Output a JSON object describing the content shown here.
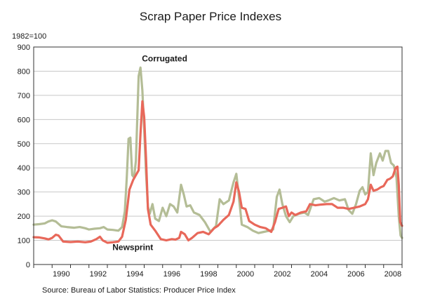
{
  "title": "Scrap Paper Price Indexes",
  "unit_label": "1982=100",
  "source": "Source: Bureau of Labor Statistics: Producer Price Index",
  "colors": {
    "corrugated": "#b4bd96",
    "newsprint": "#e8685a",
    "grid": "#c8c8c8",
    "axis": "#333333"
  },
  "chart_data": {
    "type": "line",
    "title": "Scrap Paper Price Indexes",
    "ylabel": "1982=100",
    "xlabel": "",
    "ylim": [
      0,
      900
    ],
    "xlim": [
      1989.0,
      2009.0
    ],
    "y_ticks": [
      0,
      100,
      200,
      300,
      400,
      500,
      600,
      700,
      800,
      900
    ],
    "x_ticks": [
      1990,
      1992,
      1994,
      1996,
      1998,
      2000,
      2002,
      2004,
      2006,
      2008
    ],
    "x_tick_labels": [
      "1990",
      "1992",
      "1994",
      "1996",
      "1998",
      "2000",
      "2002",
      "2004",
      "2006",
      "2008"
    ],
    "grid": true,
    "series": [
      {
        "name": "Corrugated",
        "color": "#b4bd96",
        "points": [
          [
            1989.0,
            165
          ],
          [
            1989.3,
            167
          ],
          [
            1989.6,
            170
          ],
          [
            1989.8,
            178
          ],
          [
            1990.0,
            183
          ],
          [
            1990.2,
            178
          ],
          [
            1990.5,
            158
          ],
          [
            1990.8,
            155
          ],
          [
            1991.2,
            152
          ],
          [
            1991.5,
            155
          ],
          [
            1991.8,
            150
          ],
          [
            1992.0,
            145
          ],
          [
            1992.3,
            148
          ],
          [
            1992.6,
            150
          ],
          [
            1992.8,
            155
          ],
          [
            1993.0,
            145
          ],
          [
            1993.3,
            143
          ],
          [
            1993.6,
            140
          ],
          [
            1993.8,
            155
          ],
          [
            1993.95,
            220
          ],
          [
            1994.05,
            355
          ],
          [
            1994.15,
            520
          ],
          [
            1994.25,
            525
          ],
          [
            1994.35,
            370
          ],
          [
            1994.45,
            360
          ],
          [
            1994.55,
            430
          ],
          [
            1994.7,
            780
          ],
          [
            1994.8,
            815
          ],
          [
            1994.9,
            720
          ],
          [
            1995.0,
            560
          ],
          [
            1995.1,
            380
          ],
          [
            1995.2,
            240
          ],
          [
            1995.3,
            210
          ],
          [
            1995.45,
            250
          ],
          [
            1995.6,
            190
          ],
          [
            1995.8,
            180
          ],
          [
            1996.0,
            235
          ],
          [
            1996.2,
            200
          ],
          [
            1996.4,
            250
          ],
          [
            1996.6,
            240
          ],
          [
            1996.8,
            215
          ],
          [
            1997.0,
            330
          ],
          [
            1997.15,
            290
          ],
          [
            1997.3,
            240
          ],
          [
            1997.5,
            245
          ],
          [
            1997.7,
            215
          ],
          [
            1998.0,
            205
          ],
          [
            1998.3,
            175
          ],
          [
            1998.6,
            135
          ],
          [
            1998.9,
            160
          ],
          [
            1999.1,
            270
          ],
          [
            1999.3,
            250
          ],
          [
            1999.6,
            265
          ],
          [
            1999.85,
            340
          ],
          [
            2000.0,
            375
          ],
          [
            2000.1,
            310
          ],
          [
            2000.3,
            165
          ],
          [
            2000.6,
            155
          ],
          [
            2000.9,
            140
          ],
          [
            2001.2,
            130
          ],
          [
            2001.5,
            135
          ],
          [
            2001.8,
            140
          ],
          [
            2002.0,
            145
          ],
          [
            2002.2,
            280
          ],
          [
            2002.35,
            310
          ],
          [
            2002.5,
            250
          ],
          [
            2002.7,
            200
          ],
          [
            2002.9,
            175
          ],
          [
            2003.1,
            200
          ],
          [
            2003.4,
            210
          ],
          [
            2003.7,
            215
          ],
          [
            2003.9,
            205
          ],
          [
            2004.2,
            270
          ],
          [
            2004.5,
            275
          ],
          [
            2004.8,
            260
          ],
          [
            2005.0,
            265
          ],
          [
            2005.3,
            275
          ],
          [
            2005.6,
            265
          ],
          [
            2005.9,
            270
          ],
          [
            2006.1,
            225
          ],
          [
            2006.3,
            210
          ],
          [
            2006.5,
            250
          ],
          [
            2006.7,
            305
          ],
          [
            2006.85,
            320
          ],
          [
            2007.0,
            290
          ],
          [
            2007.15,
            300
          ],
          [
            2007.3,
            460
          ],
          [
            2007.45,
            370
          ],
          [
            2007.6,
            420
          ],
          [
            2007.8,
            460
          ],
          [
            2007.95,
            430
          ],
          [
            2008.1,
            470
          ],
          [
            2008.25,
            470
          ],
          [
            2008.4,
            420
          ],
          [
            2008.55,
            410
          ],
          [
            2008.7,
            360
          ],
          [
            2008.82,
            200
          ],
          [
            2008.92,
            120
          ],
          [
            2009.0,
            110
          ]
        ]
      },
      {
        "name": "Newsprint",
        "color": "#e8685a",
        "points": [
          [
            1989.0,
            113
          ],
          [
            1989.3,
            112
          ],
          [
            1989.6,
            108
          ],
          [
            1989.8,
            104
          ],
          [
            1990.0,
            110
          ],
          [
            1990.2,
            123
          ],
          [
            1990.35,
            120
          ],
          [
            1990.6,
            95
          ],
          [
            1991.0,
            93
          ],
          [
            1991.4,
            95
          ],
          [
            1991.8,
            92
          ],
          [
            1992.1,
            95
          ],
          [
            1992.4,
            105
          ],
          [
            1992.6,
            115
          ],
          [
            1992.75,
            100
          ],
          [
            1993.0,
            90
          ],
          [
            1993.3,
            92
          ],
          [
            1993.6,
            95
          ],
          [
            1993.8,
            115
          ],
          [
            1994.0,
            185
          ],
          [
            1994.2,
            310
          ],
          [
            1994.4,
            350
          ],
          [
            1994.55,
            370
          ],
          [
            1994.7,
            390
          ],
          [
            1994.8,
            540
          ],
          [
            1994.9,
            675
          ],
          [
            1995.0,
            610
          ],
          [
            1995.1,
            440
          ],
          [
            1995.2,
            230
          ],
          [
            1995.35,
            165
          ],
          [
            1995.6,
            140
          ],
          [
            1995.9,
            105
          ],
          [
            1996.2,
            100
          ],
          [
            1996.5,
            105
          ],
          [
            1996.7,
            103
          ],
          [
            1996.9,
            110
          ],
          [
            1997.0,
            135
          ],
          [
            1997.2,
            125
          ],
          [
            1997.4,
            100
          ],
          [
            1997.6,
            110
          ],
          [
            1997.9,
            130
          ],
          [
            1998.2,
            135
          ],
          [
            1998.5,
            125
          ],
          [
            1998.8,
            150
          ],
          [
            1999.0,
            160
          ],
          [
            1999.3,
            185
          ],
          [
            1999.6,
            205
          ],
          [
            1999.85,
            260
          ],
          [
            2000.0,
            340
          ],
          [
            2000.15,
            300
          ],
          [
            2000.3,
            235
          ],
          [
            2000.5,
            230
          ],
          [
            2000.7,
            180
          ],
          [
            2001.0,
            165
          ],
          [
            2001.3,
            155
          ],
          [
            2001.6,
            150
          ],
          [
            2001.9,
            135
          ],
          [
            2002.1,
            175
          ],
          [
            2002.3,
            230
          ],
          [
            2002.5,
            235
          ],
          [
            2002.7,
            240
          ],
          [
            2002.85,
            200
          ],
          [
            2003.0,
            215
          ],
          [
            2003.2,
            205
          ],
          [
            2003.5,
            215
          ],
          [
            2003.8,
            220
          ],
          [
            2004.0,
            250
          ],
          [
            2004.3,
            245
          ],
          [
            2004.6,
            248
          ],
          [
            2004.9,
            250
          ],
          [
            2005.2,
            250
          ],
          [
            2005.5,
            235
          ],
          [
            2005.8,
            235
          ],
          [
            2006.1,
            230
          ],
          [
            2006.4,
            235
          ],
          [
            2006.7,
            240
          ],
          [
            2007.0,
            250
          ],
          [
            2007.15,
            270
          ],
          [
            2007.3,
            330
          ],
          [
            2007.45,
            305
          ],
          [
            2007.65,
            310
          ],
          [
            2007.85,
            320
          ],
          [
            2008.0,
            325
          ],
          [
            2008.2,
            350
          ],
          [
            2008.35,
            355
          ],
          [
            2008.5,
            365
          ],
          [
            2008.65,
            400
          ],
          [
            2008.75,
            405
          ],
          [
            2008.82,
            330
          ],
          [
            2008.9,
            175
          ],
          [
            2009.0,
            160
          ]
        ]
      }
    ],
    "annotations": [
      {
        "text": "Corrugated",
        "x": 1994.8,
        "y": 840
      },
      {
        "text": "Newsprint",
        "x": 1993.2,
        "y": 60
      }
    ]
  }
}
